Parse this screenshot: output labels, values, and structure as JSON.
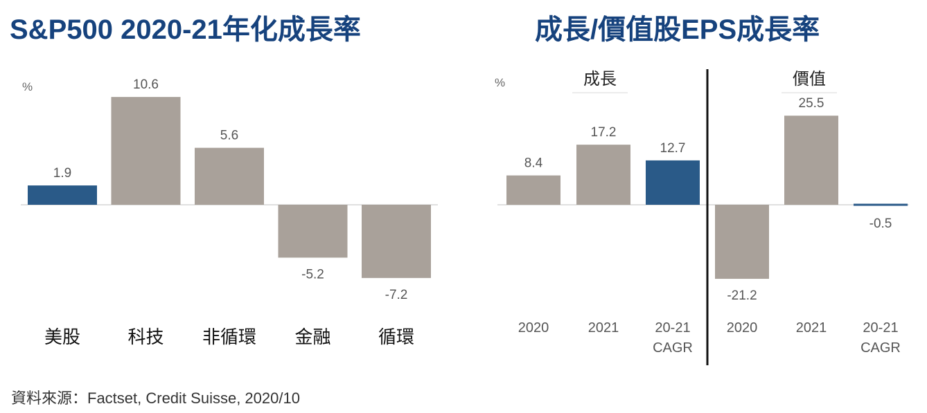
{
  "colors": {
    "highlight": "#2a5a88",
    "neutral": "#a9a19a",
    "title": "#16427d"
  },
  "source": "資料來源：Factset, Credit Suisse, 2020/10",
  "chart_data": [
    {
      "type": "bar",
      "title": "S&P500 2020-21年化成長率",
      "unit": "%",
      "categories": [
        "美股",
        "科技",
        "非循環",
        "金融",
        "循環"
      ],
      "values": [
        1.9,
        10.6,
        5.6,
        -5.2,
        -7.2
      ],
      "value_labels": [
        "1.9",
        "10.6",
        "5.6",
        "-5.2",
        "-7.2"
      ],
      "highlight_index": 0,
      "ylim": [
        -7.5,
        11.5
      ],
      "grid": false
    },
    {
      "type": "bar",
      "title": "成長/價值股EPS成長率",
      "unit": "%",
      "groups": [
        {
          "label": "成長",
          "categories": [
            "2020",
            "2021",
            "20-21 CAGR"
          ],
          "values": [
            8.4,
            17.2,
            12.7
          ],
          "value_labels": [
            "8.4",
            "17.2",
            "12.7"
          ],
          "highlight_index": 2
        },
        {
          "label": "價值",
          "categories": [
            "2020",
            "2021",
            "20-21 CAGR"
          ],
          "values": [
            -21.2,
            25.5,
            -0.5
          ],
          "value_labels": [
            "-21.2",
            "25.5",
            "-0.5"
          ],
          "highlight_index": 2
        }
      ],
      "ylim": [
        -22,
        28
      ],
      "grid": false
    }
  ]
}
